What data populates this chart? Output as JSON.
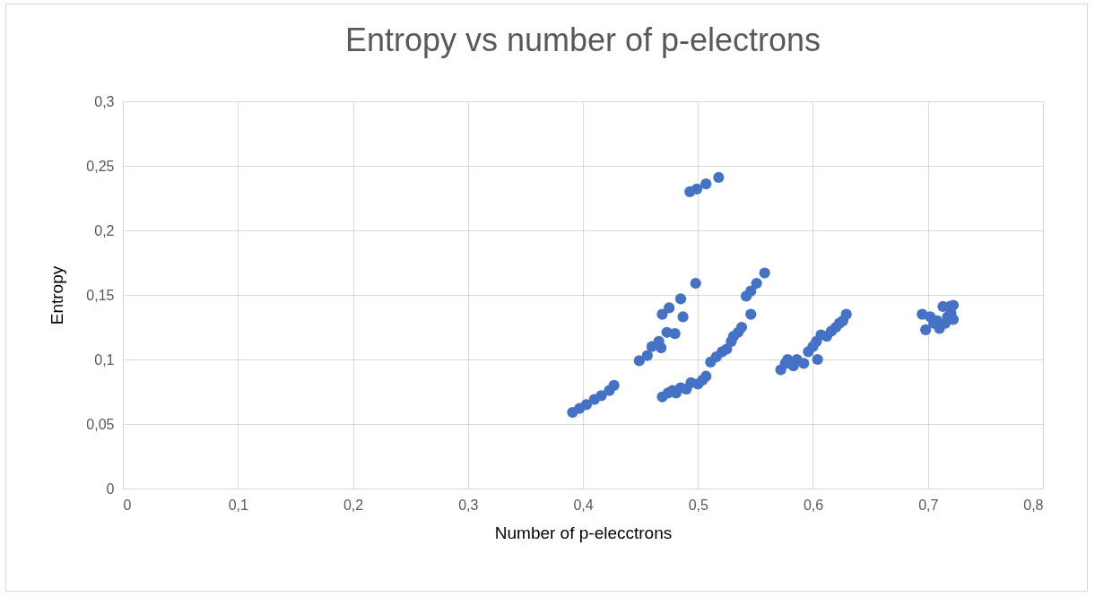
{
  "chart_data": {
    "type": "scatter",
    "title": "Entropy vs number of p-electrons",
    "xlabel": "Number of p-elecctrons",
    "ylabel": "Entropy",
    "xlim": [
      0,
      0.8
    ],
    "ylim": [
      0,
      0.3
    ],
    "xticks": [
      0,
      {
        "value": 0.1,
        "label": "0,1"
      },
      {
        "value": 0.2,
        "label": "0,2"
      },
      {
        "value": 0.3,
        "label": "0,3"
      },
      {
        "value": 0.4,
        "label": "0,4"
      },
      {
        "value": 0.5,
        "label": "0,5"
      },
      {
        "value": 0.6,
        "label": "0,6"
      },
      {
        "value": 0.7,
        "label": "0,7"
      },
      {
        "value": 0.8,
        "label": "0,8"
      }
    ],
    "yticks": [
      0,
      {
        "value": 0.05,
        "label": "0,05"
      },
      {
        "value": 0.1,
        "label": "0,1"
      },
      {
        "value": 0.15,
        "label": "0,15"
      },
      {
        "value": 0.2,
        "label": "0,2"
      },
      {
        "value": 0.25,
        "label": "0,25"
      },
      {
        "value": 0.3,
        "label": "0,3"
      }
    ],
    "grid": true,
    "marker": "circle",
    "series": [
      {
        "color": "#4472c4",
        "x": [
          0.391,
          0.397,
          0.403,
          0.41,
          0.416,
          0.423,
          0.427,
          0.493,
          0.499,
          0.507,
          0.518,
          0.449,
          0.456,
          0.46,
          0.466,
          0.468,
          0.469,
          0.473,
          0.475,
          0.48,
          0.485,
          0.487,
          0.498,
          0.469,
          0.474,
          0.478,
          0.481,
          0.485,
          0.49,
          0.494,
          0.5,
          0.504,
          0.507,
          0.511,
          0.516,
          0.521,
          0.525,
          0.529,
          0.531,
          0.535,
          0.538,
          0.546,
          0.542,
          0.546,
          0.551,
          0.558,
          0.572,
          0.576,
          0.578,
          0.583,
          0.586,
          0.592,
          0.596,
          0.6,
          0.604,
          0.603,
          0.607,
          0.612,
          0.616,
          0.62,
          0.623,
          0.626,
          0.629,
          0.695,
          0.698,
          0.702,
          0.705,
          0.708,
          0.71,
          0.713,
          0.715,
          0.717,
          0.719,
          0.72,
          0.722,
          0.722
        ],
        "values": [
          0.059,
          0.062,
          0.065,
          0.069,
          0.072,
          0.076,
          0.08,
          0.23,
          0.232,
          0.236,
          0.241,
          0.099,
          0.103,
          0.11,
          0.114,
          0.109,
          0.135,
          0.121,
          0.14,
          0.12,
          0.147,
          0.133,
          0.159,
          0.071,
          0.074,
          0.076,
          0.074,
          0.078,
          0.077,
          0.082,
          0.081,
          0.084,
          0.087,
          0.098,
          0.102,
          0.106,
          0.108,
          0.114,
          0.118,
          0.121,
          0.125,
          0.135,
          0.149,
          0.153,
          0.159,
          0.167,
          0.092,
          0.097,
          0.1,
          0.095,
          0.1,
          0.097,
          0.106,
          0.11,
          0.1,
          0.114,
          0.119,
          0.118,
          0.122,
          0.125,
          0.128,
          0.13,
          0.135,
          0.135,
          0.123,
          0.133,
          0.128,
          0.13,
          0.124,
          0.141,
          0.128,
          0.133,
          0.141,
          0.136,
          0.142,
          0.131
        ]
      }
    ]
  }
}
